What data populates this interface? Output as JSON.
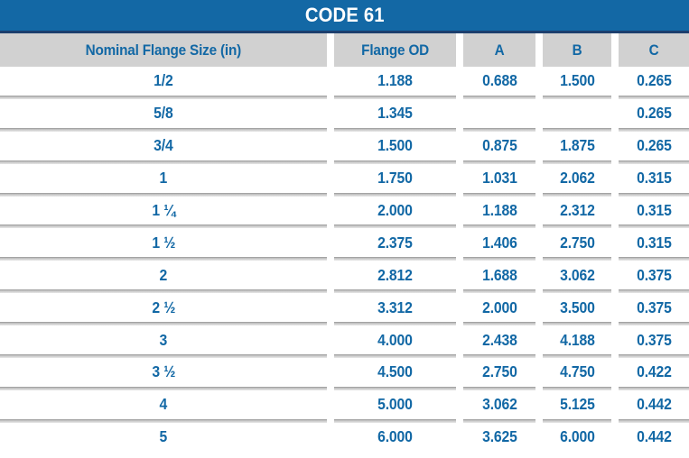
{
  "title": "CODE 61",
  "colors": {
    "title_bar": "#1368a5",
    "title_bar_bottom_edge": "#1c3f6e",
    "title_text": "#ffffff",
    "header_cell_background": "#d1d1d1",
    "table_text": "#1268a5",
    "row_separator": "#969696"
  },
  "table": {
    "columns": [
      "Nominal Flange Size (in)",
      "Flange OD",
      "A",
      "B",
      "C"
    ],
    "rows": [
      [
        "1/2",
        "1.188",
        "0.688",
        "1.500",
        "0.265"
      ],
      [
        "5/8",
        "1.345",
        "",
        "",
        "0.265"
      ],
      [
        "3/4",
        "1.500",
        "0.875",
        "1.875",
        "0.265"
      ],
      [
        "1",
        "1.750",
        "1.031",
        "2.062",
        "0.315"
      ],
      [
        "1 ¼",
        "2.000",
        "1.188",
        "2.312",
        "0.315"
      ],
      [
        "1 ½",
        "2.375",
        "1.406",
        "2.750",
        "0.315"
      ],
      [
        "2",
        "2.812",
        "1.688",
        "3.062",
        "0.375"
      ],
      [
        "2 ½",
        "3.312",
        "2.000",
        "3.500",
        "0.375"
      ],
      [
        "3",
        "4.000",
        "2.438",
        "4.188",
        "0.375"
      ],
      [
        "3 ½",
        "4.500",
        "2.750",
        "4.750",
        "0.422"
      ],
      [
        "4",
        "5.000",
        "3.062",
        "5.125",
        "0.442"
      ],
      [
        "5",
        "6.000",
        "3.625",
        "6.000",
        "0.442"
      ]
    ]
  }
}
